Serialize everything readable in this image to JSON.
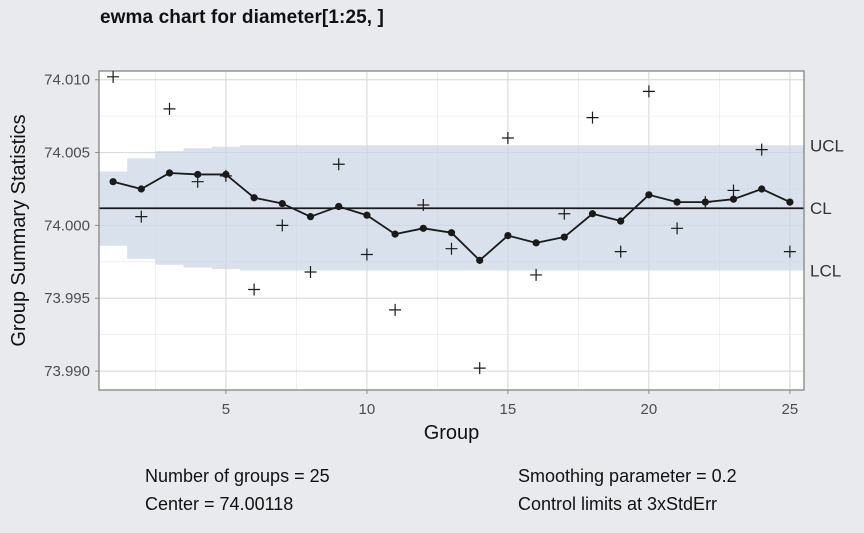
{
  "title": "ewma chart for diameter[1:25, ]",
  "chart_data": {
    "type": "line",
    "title": "ewma chart for diameter[1:25, ]",
    "xlabel": "Group",
    "ylabel": "Group Summary Statistics",
    "xlim": [
      0.5,
      25.5
    ],
    "ylim": [
      73.9887,
      74.0106
    ],
    "x_ticks": [
      5,
      10,
      15,
      20,
      25
    ],
    "y_ticks": [
      73.99,
      73.995,
      74.0,
      74.005,
      74.01
    ],
    "x_tick_labels": [
      "5",
      "10",
      "15",
      "20",
      "25"
    ],
    "y_tick_labels": [
      "73.990",
      "73.995",
      "74.000",
      "74.005",
      "74.010"
    ],
    "grid": true,
    "center": 74.00118,
    "center_label": "CL",
    "ucl_label": "UCL",
    "lcl_label": "LCL",
    "limits": {
      "x": [
        1,
        2,
        3,
        4,
        5,
        6,
        7,
        8,
        9,
        10,
        11,
        12,
        13,
        14,
        15,
        16,
        17,
        18,
        19,
        20,
        21,
        22,
        23,
        24,
        25
      ],
      "ucl": [
        74.0037,
        74.0046,
        74.0051,
        74.0053,
        74.0054,
        74.0055,
        74.0055,
        74.0055,
        74.0055,
        74.0055,
        74.0055,
        74.0055,
        74.0055,
        74.0055,
        74.0055,
        74.0055,
        74.0055,
        74.0055,
        74.0055,
        74.0055,
        74.0055,
        74.0055,
        74.0055,
        74.0055,
        74.0055
      ],
      "lcl": [
        73.9986,
        73.9977,
        73.9973,
        73.9971,
        73.997,
        73.9969,
        73.9969,
        73.9969,
        73.9969,
        73.9969,
        73.9969,
        73.9969,
        73.9969,
        73.9969,
        73.9969,
        73.9969,
        73.9969,
        73.9969,
        73.9969,
        73.9969,
        73.9969,
        73.9969,
        73.9969,
        73.9969,
        73.9969
      ]
    },
    "series": [
      {
        "marker": "plus",
        "x": [
          1,
          2,
          3,
          4,
          5,
          6,
          7,
          8,
          9,
          10,
          11,
          12,
          13,
          14,
          15,
          16,
          17,
          18,
          19,
          20,
          21,
          22,
          23,
          24,
          25
        ],
        "values": [
          74.0102,
          74.0006,
          74.008,
          74.003,
          74.0034,
          73.9956,
          74.0,
          73.9968,
          74.0042,
          73.998,
          73.9942,
          74.0014,
          73.9984,
          73.9902,
          74.006,
          73.9966,
          74.0008,
          74.0074,
          73.9982,
          74.0092,
          73.9998,
          74.0016,
          74.0024,
          74.0052,
          73.9982
        ]
      },
      {
        "marker": "dot",
        "x": [
          1,
          2,
          3,
          4,
          5,
          6,
          7,
          8,
          9,
          10,
          11,
          12,
          13,
          14,
          15,
          16,
          17,
          18,
          19,
          20,
          21,
          22,
          23,
          24,
          25
        ],
        "values": [
          74.003,
          74.0025,
          74.0036,
          74.0035,
          74.0035,
          74.0019,
          74.0015,
          74.0006,
          74.0013,
          74.0007,
          73.9994,
          73.9998,
          73.9995,
          73.9976,
          73.9993,
          73.9988,
          73.9992,
          74.0008,
          74.0003,
          74.0021,
          74.0016,
          74.0016,
          74.0018,
          74.0025,
          74.0016
        ]
      }
    ]
  },
  "stats": {
    "groups": "Number of groups = 25",
    "center": "Center = 74.00118",
    "smoothing": "Smoothing parameter = 0.2",
    "limits": "Control limits at 3xStdErr"
  }
}
